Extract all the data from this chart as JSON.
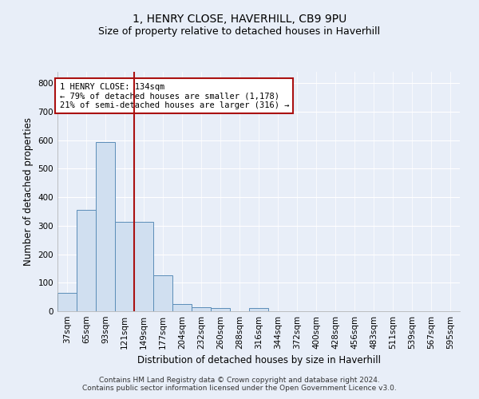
{
  "title_line1": "1, HENRY CLOSE, HAVERHILL, CB9 9PU",
  "title_line2": "Size of property relative to detached houses in Haverhill",
  "xlabel": "Distribution of detached houses by size in Haverhill",
  "ylabel": "Number of detached properties",
  "categories": [
    "37sqm",
    "65sqm",
    "93sqm",
    "121sqm",
    "149sqm",
    "177sqm",
    "204sqm",
    "232sqm",
    "260sqm",
    "288sqm",
    "316sqm",
    "344sqm",
    "372sqm",
    "400sqm",
    "428sqm",
    "456sqm",
    "483sqm",
    "511sqm",
    "539sqm",
    "567sqm",
    "595sqm"
  ],
  "values": [
    65,
    355,
    595,
    315,
    315,
    125,
    25,
    15,
    10,
    0,
    10,
    0,
    0,
    0,
    0,
    0,
    0,
    0,
    0,
    0,
    0
  ],
  "bar_color": "#d0dff0",
  "bar_edge_color": "#5b8db8",
  "vline_color": "#aa1111",
  "annotation_text": "1 HENRY CLOSE: 134sqm\n← 79% of detached houses are smaller (1,178)\n21% of semi-detached houses are larger (316) →",
  "annotation_box_color": "#ffffff",
  "annotation_box_edge": "#aa1111",
  "ylim": [
    0,
    840
  ],
  "yticks": [
    0,
    100,
    200,
    300,
    400,
    500,
    600,
    700,
    800
  ],
  "footer_line1": "Contains HM Land Registry data © Crown copyright and database right 2024.",
  "footer_line2": "Contains public sector information licensed under the Open Government Licence v3.0.",
  "bg_color": "#e8eef8",
  "plot_bg_color": "#e8eef8",
  "grid_color": "#ffffff",
  "title_fontsize": 10,
  "subtitle_fontsize": 9,
  "axis_label_fontsize": 8.5,
  "tick_fontsize": 7.5,
  "footer_fontsize": 6.5
}
